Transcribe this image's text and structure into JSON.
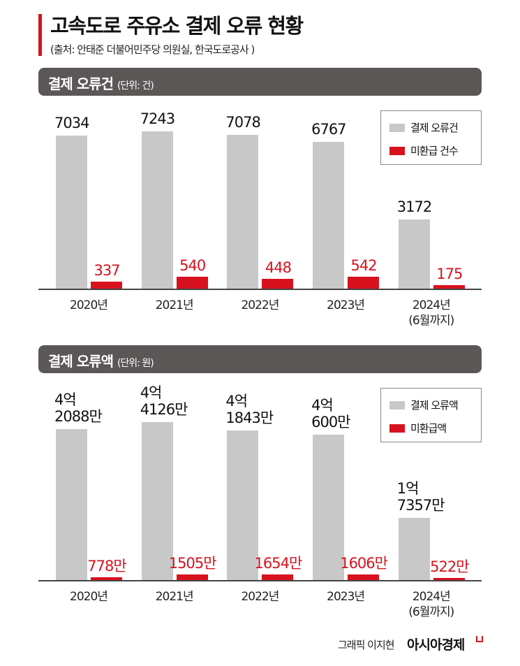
{
  "title": "고속도로 주유소 결제 오류 현황",
  "source": "(출처: 안태준 더불어민주당 의원실, 한국도로공사 )",
  "colors": {
    "gray": "#c8c8c8",
    "red": "#d7121e",
    "header": "#5b5757"
  },
  "credit": "그래픽 이지현",
  "brand": "아시아경제",
  "chart_data": [
    {
      "type": "bar",
      "title": "결제 오류건",
      "unit": "(단위: 건)",
      "categories": [
        "2020년",
        "2021년",
        "2022년",
        "2023년",
        "2024년\n(6월까지)"
      ],
      "series": [
        {
          "name": "결제 오류건",
          "values": [
            7034,
            7243,
            7078,
            6767,
            3172
          ],
          "labels": [
            "7034",
            "7243",
            "7078",
            "6767",
            "3172"
          ]
        },
        {
          "name": "미환급 건수",
          "values": [
            337,
            540,
            448,
            542,
            175
          ],
          "labels": [
            "337",
            "540",
            "448",
            "542",
            "175"
          ]
        }
      ],
      "legend": "top-right"
    },
    {
      "type": "bar",
      "title": "결제 오류액",
      "unit": "(단위: 원)",
      "categories": [
        "2020년",
        "2021년",
        "2022년",
        "2023년",
        "2024년\n(6월까지)"
      ],
      "series": [
        {
          "name": "결제 오류액",
          "values": [
            420880000,
            441260000,
            418430000,
            406000000,
            173570000
          ],
          "labels": [
            "4억\n2088만",
            "4억\n4126만",
            "4억\n1843만",
            "4억\n600만",
            "1억\n7357만"
          ]
        },
        {
          "name": "미환급액",
          "values": [
            7780000,
            15050000,
            16540000,
            16060000,
            5220000
          ],
          "labels": [
            "778만",
            "1505만",
            "1654만",
            "1606만",
            "522만"
          ]
        }
      ],
      "legend": "top-right"
    }
  ]
}
